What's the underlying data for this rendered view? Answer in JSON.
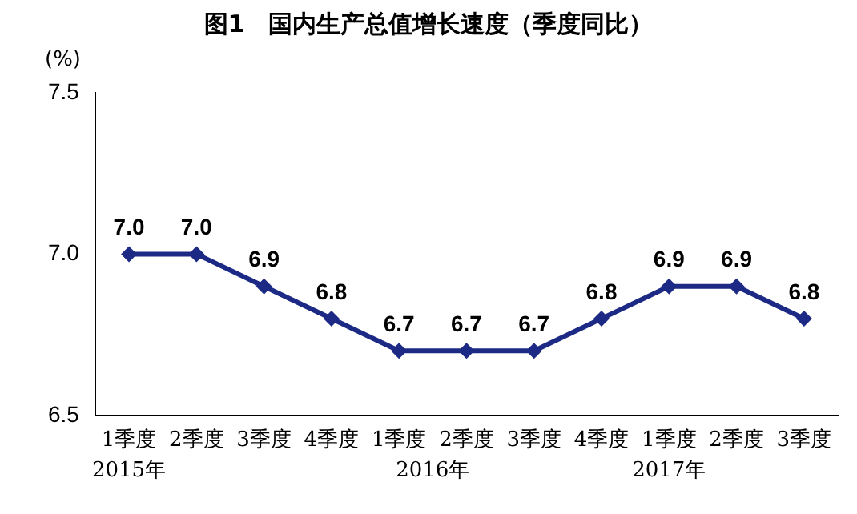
{
  "chart_data": {
    "type": "line",
    "title": "图1　国内生产总值增长速度（季度同比）",
    "ylabel": "(%)",
    "categories": [
      "1季度",
      "2季度",
      "3季度",
      "4季度",
      "1季度",
      "2季度",
      "3季度",
      "4季度",
      "1季度",
      "2季度",
      "3季度"
    ],
    "series": [
      {
        "color": "#1c2a85",
        "values": [
          7.0,
          7.0,
          6.9,
          6.8,
          6.7,
          6.7,
          6.7,
          6.8,
          6.9,
          6.9,
          6.8
        ],
        "value_labels": [
          "7.0",
          "7.0",
          "6.9",
          "6.8",
          "6.7",
          "6.7",
          "6.7",
          "6.8",
          "6.9",
          "6.9",
          "6.8"
        ]
      }
    ],
    "ylim": [
      6.5,
      7.5
    ],
    "yticks": [
      {
        "value": 6.5,
        "label": "6.5"
      },
      {
        "value": 7.0,
        "label": "7.0"
      },
      {
        "value": 7.5,
        "label": "7.5"
      }
    ],
    "annotations": [
      "2015年",
      "2016年",
      "2017年"
    ],
    "grid": false,
    "legend": false,
    "marker": "diamond",
    "line_style": "solid"
  }
}
